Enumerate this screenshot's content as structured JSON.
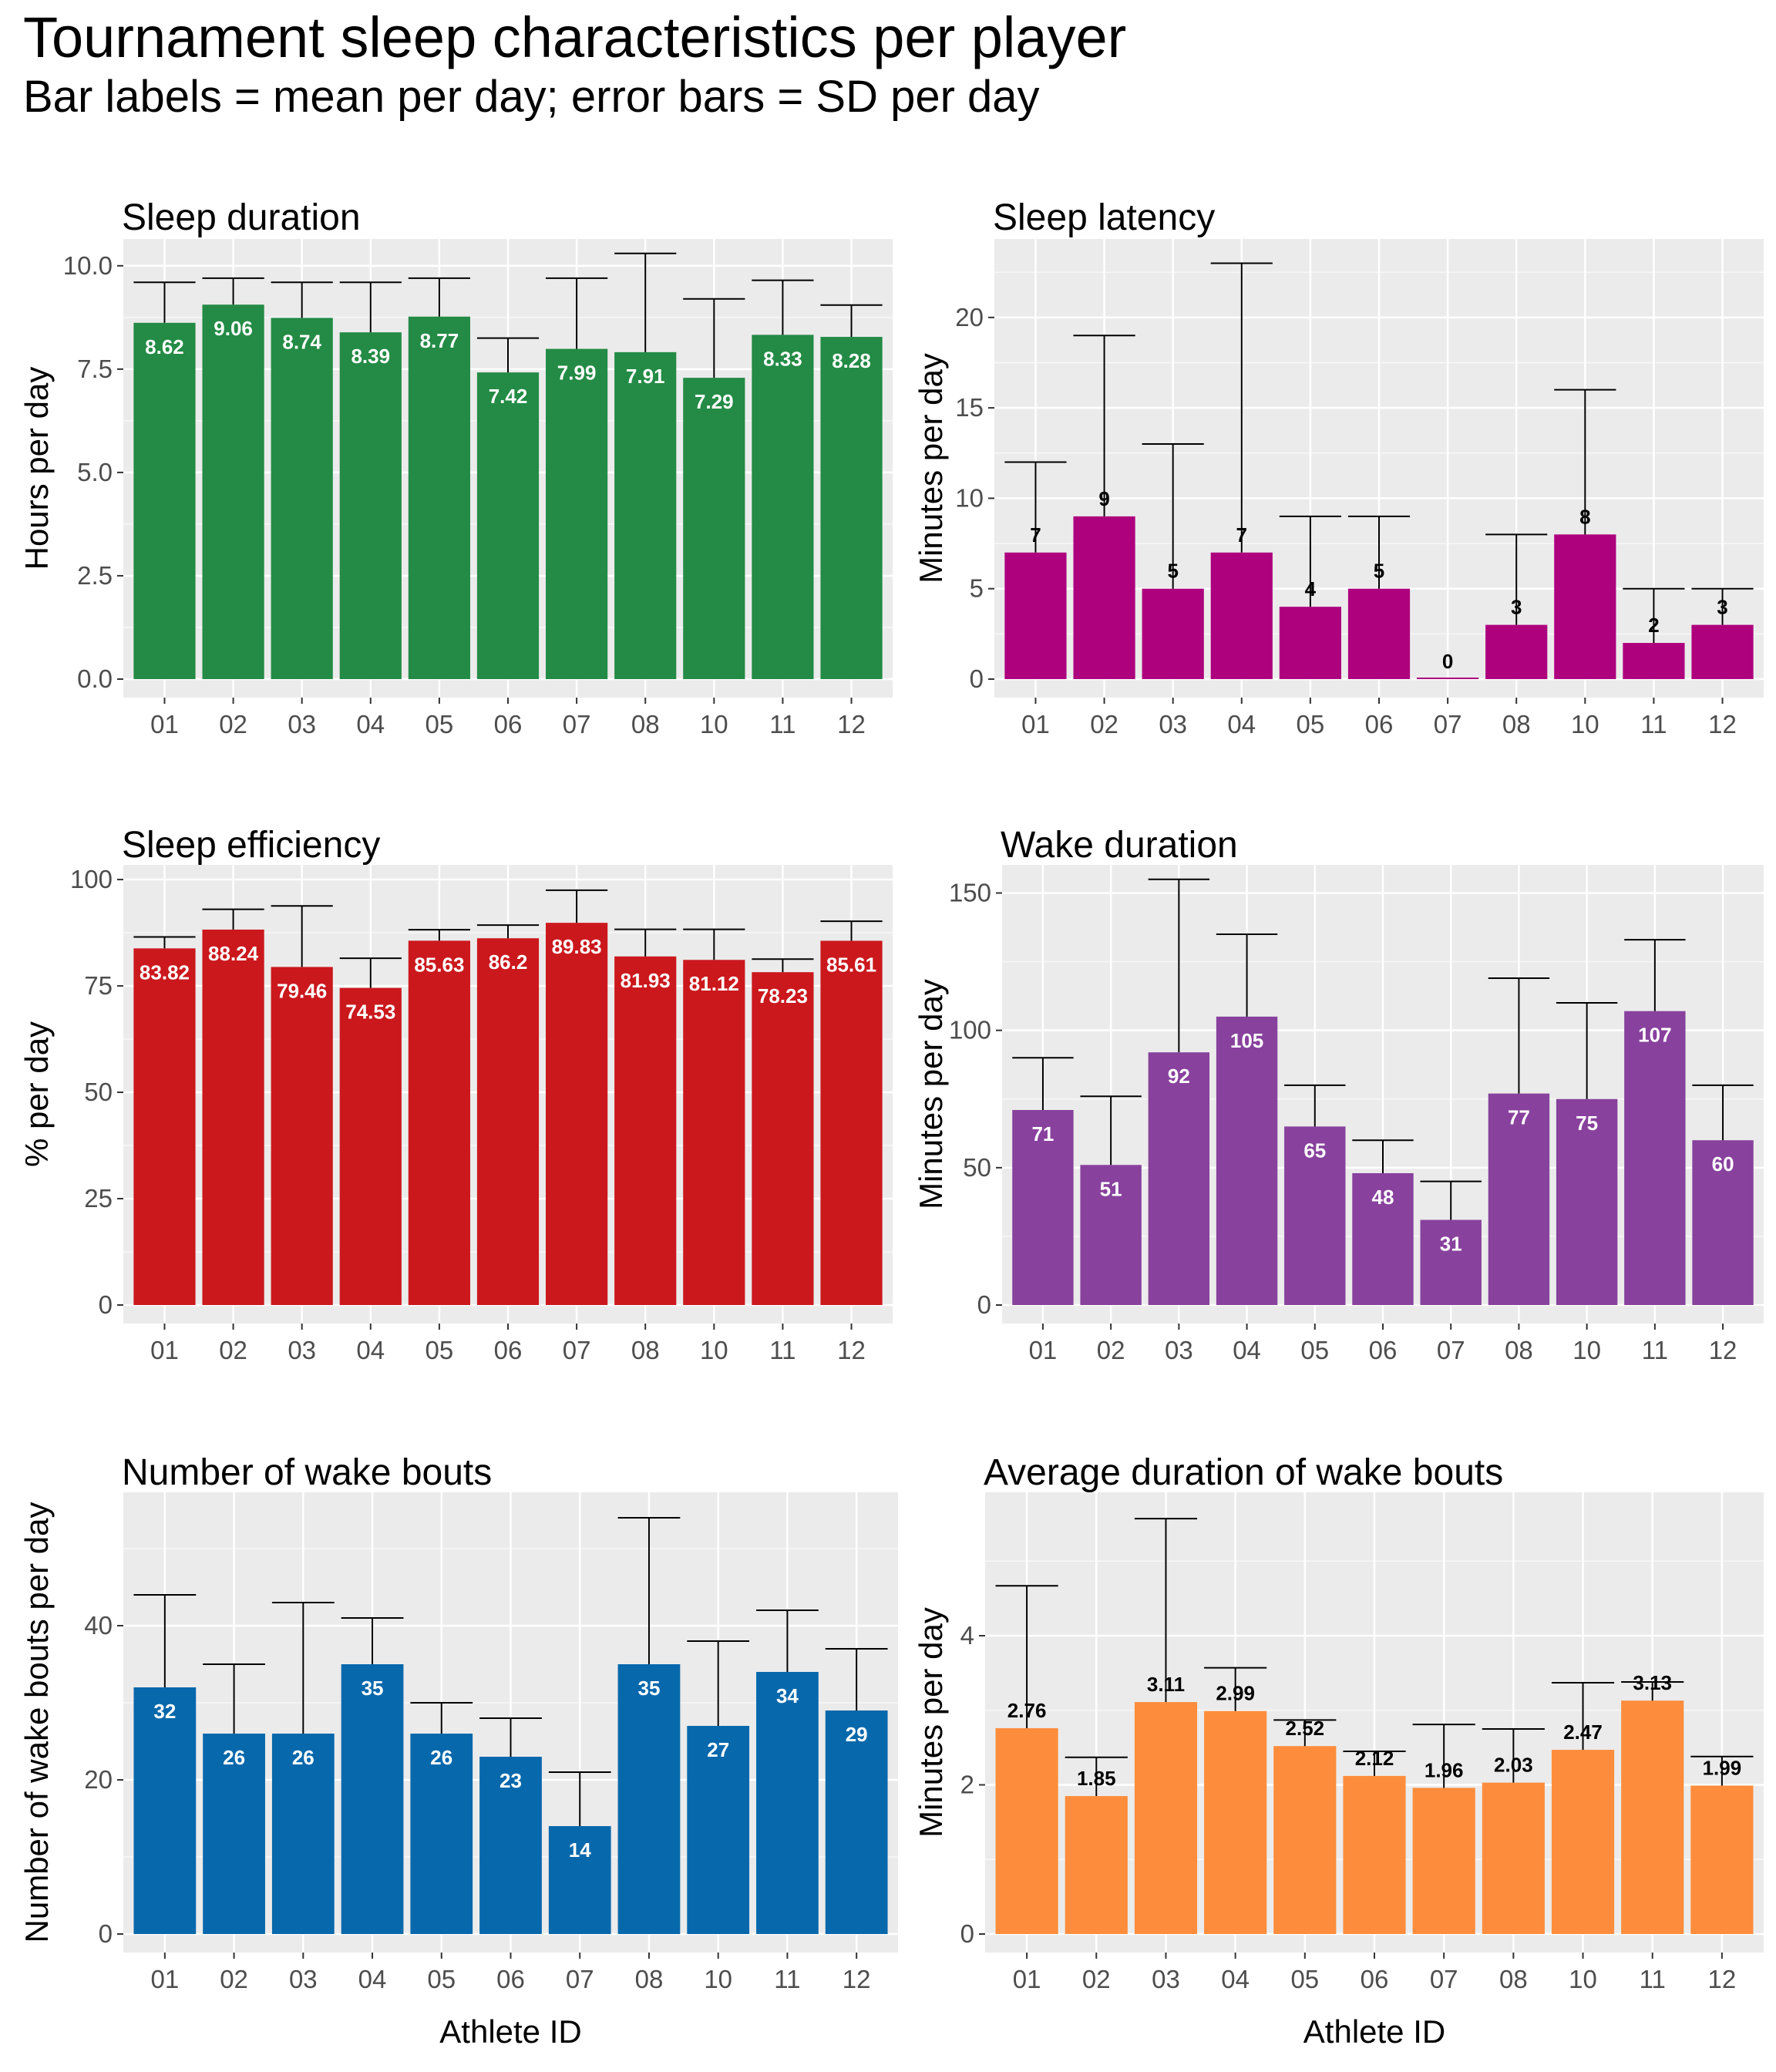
{
  "title": "Tournament sleep characteristics per player",
  "subtitle": "Bar labels = mean per day; error bars = SD per day",
  "x_axis_title": "Athlete ID",
  "chart_data": [
    {
      "type": "bar",
      "title": "Sleep duration",
      "ylabel": "Hours per day",
      "xlabel": "",
      "color": "#238B45",
      "label_color": "#ffffff",
      "ylim": [
        0,
        10.5
      ],
      "yticks": [
        0,
        2.5,
        5,
        7.5,
        10
      ],
      "ytick_labels": [
        "0.0",
        "2.5",
        "5.0",
        "7.5",
        "10.0"
      ],
      "categories": [
        "01",
        "02",
        "03",
        "04",
        "05",
        "06",
        "07",
        "08",
        "10",
        "11",
        "12"
      ],
      "values": [
        8.62,
        9.06,
        8.74,
        8.39,
        8.77,
        7.42,
        7.99,
        7.91,
        7.29,
        8.33,
        8.28
      ],
      "labels": [
        "8.62",
        "9.06",
        "8.74",
        "8.39",
        "8.77",
        "7.42",
        "7.99",
        "7.91",
        "7.29",
        "8.33",
        "8.28"
      ],
      "err_upper": [
        9.6,
        9.7,
        9.6,
        9.6,
        9.7,
        8.25,
        9.7,
        10.3,
        9.2,
        9.65,
        9.05
      ]
    },
    {
      "type": "bar",
      "title": "Sleep latency",
      "ylabel": "Minutes per day",
      "xlabel": "",
      "color": "#AE017E",
      "label_color": "#000000",
      "ylim": [
        0,
        24
      ],
      "yticks": [
        0,
        5,
        10,
        15,
        20
      ],
      "ytick_labels": [
        "0",
        "5",
        "10",
        "15",
        "20"
      ],
      "categories": [
        "01",
        "02",
        "03",
        "04",
        "05",
        "06",
        "07",
        "08",
        "10",
        "11",
        "12"
      ],
      "values": [
        7,
        9,
        5,
        7,
        4,
        5,
        0,
        3,
        8,
        2,
        3
      ],
      "labels": [
        "7",
        "9",
        "5",
        "7",
        "4",
        "5",
        "0",
        "3",
        "8",
        "2",
        "3"
      ],
      "err_upper": [
        12,
        19,
        13,
        23,
        9,
        9,
        0,
        8,
        16,
        5,
        5
      ]
    },
    {
      "type": "bar",
      "title": "Sleep efficiency",
      "ylabel": "% per day",
      "xlabel": "",
      "color": "#CB181D",
      "label_color": "#ffffff",
      "ylim": [
        0,
        102
      ],
      "yticks": [
        0,
        25,
        50,
        75,
        100
      ],
      "ytick_labels": [
        "0",
        "25",
        "50",
        "75",
        "100"
      ],
      "categories": [
        "01",
        "02",
        "03",
        "04",
        "05",
        "06",
        "07",
        "08",
        "10",
        "11",
        "12"
      ],
      "values": [
        83.82,
        88.24,
        79.46,
        74.53,
        85.63,
        86.2,
        89.83,
        81.93,
        81.12,
        78.23,
        85.61
      ],
      "labels": [
        "83.82",
        "88.24",
        "79.46",
        "74.53",
        "85.63",
        "86.2",
        "89.83",
        "81.93",
        "81.12",
        "78.23",
        "85.61"
      ],
      "err_upper": [
        86.5,
        93,
        93.8,
        81.5,
        88.2,
        89.3,
        97.5,
        88.3,
        88.3,
        81.3,
        90.2
      ]
    },
    {
      "type": "bar",
      "title": "Wake duration",
      "ylabel": "Minutes per day",
      "xlabel": "",
      "color": "#88419D",
      "label_color": "#ffffff",
      "ylim": [
        0,
        158
      ],
      "yticks": [
        0,
        50,
        100,
        150
      ],
      "ytick_labels": [
        "0",
        "50",
        "100",
        "150"
      ],
      "categories": [
        "01",
        "02",
        "03",
        "04",
        "05",
        "06",
        "07",
        "08",
        "10",
        "11",
        "12"
      ],
      "values": [
        71,
        51,
        92,
        105,
        65,
        48,
        31,
        77,
        75,
        107,
        60
      ],
      "labels": [
        "71",
        "51",
        "92",
        "105",
        "65",
        "48",
        "31",
        "77",
        "75",
        "107",
        "60"
      ],
      "err_upper": [
        90,
        76,
        155,
        135,
        80,
        60,
        45,
        119,
        110,
        133,
        80
      ]
    },
    {
      "type": "bar",
      "title": "Number of wake bouts",
      "ylabel": "Number of wake bouts per day",
      "xlabel": "Athlete ID",
      "color": "#0868AC",
      "label_color": "#ffffff",
      "ylim": [
        0,
        56.5
      ],
      "yticks": [
        0,
        20,
        40
      ],
      "ytick_labels": [
        "0",
        "20",
        "40"
      ],
      "categories": [
        "01",
        "02",
        "03",
        "04",
        "05",
        "06",
        "07",
        "08",
        "10",
        "11",
        "12"
      ],
      "values": [
        32,
        26,
        26,
        35,
        26,
        23,
        14,
        35,
        27,
        34,
        29
      ],
      "labels": [
        "32",
        "26",
        "26",
        "35",
        "26",
        "23",
        "14",
        "35",
        "27",
        "34",
        "29"
      ],
      "err_upper": [
        44,
        35,
        43,
        41,
        30,
        28,
        21,
        54,
        38,
        42,
        37
      ]
    },
    {
      "type": "bar",
      "title": "Average duration of wake bouts",
      "ylabel": "Minutes per day",
      "xlabel": "Athlete ID",
      "color": "#FD8D3C",
      "label_color": "#000000",
      "ylim": [
        0,
        5.84
      ],
      "yticks": [
        0,
        2,
        4
      ],
      "ytick_labels": [
        "0",
        "2",
        "4"
      ],
      "categories": [
        "01",
        "02",
        "03",
        "04",
        "05",
        "06",
        "07",
        "08",
        "10",
        "11",
        "12"
      ],
      "values": [
        2.76,
        1.85,
        3.11,
        2.99,
        2.52,
        2.12,
        1.96,
        2.03,
        2.47,
        3.13,
        1.99
      ],
      "labels": [
        "2.76",
        "1.85",
        "3.11",
        "2.99",
        "2.52",
        "2.12",
        "1.96",
        "2.03",
        "2.47",
        "3.13",
        "1.99"
      ],
      "err_upper": [
        4.67,
        2.37,
        5.57,
        3.57,
        2.87,
        2.45,
        2.81,
        2.75,
        3.37,
        3.38,
        2.38
      ]
    }
  ]
}
